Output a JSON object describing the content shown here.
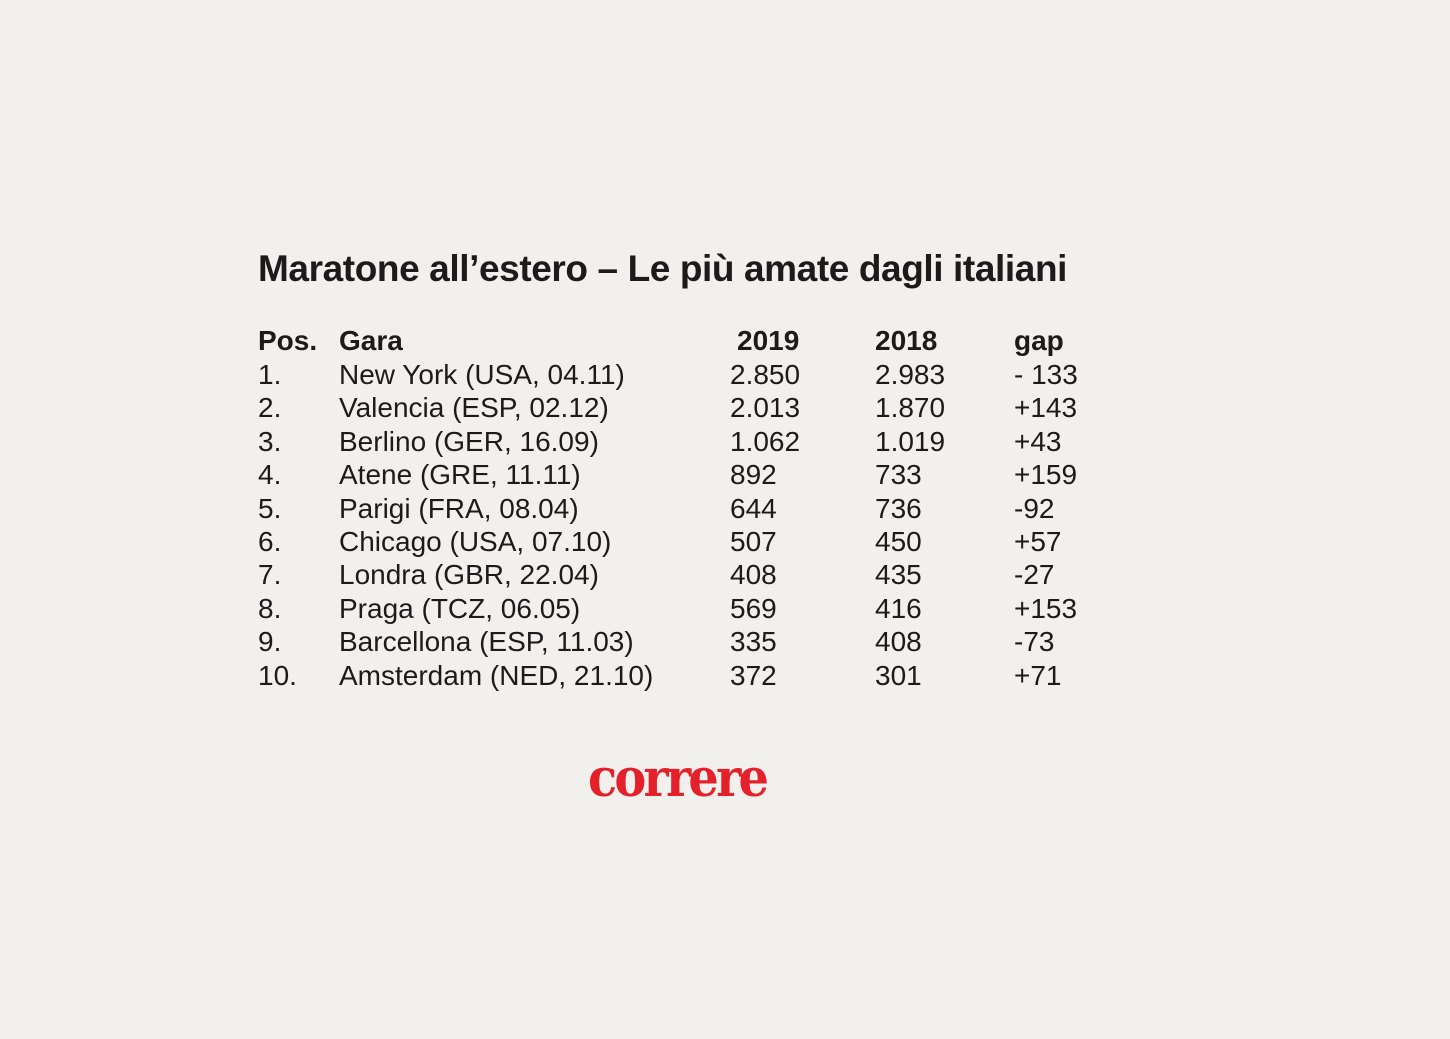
{
  "title": "Maratone all’estero – Le più amate dagli italiani",
  "table": {
    "headers": {
      "pos": "Pos.",
      "gara": "Gara",
      "y2019": "2019",
      "y2018": "2018",
      "gap": "gap"
    },
    "rows": [
      {
        "pos": "1.",
        "gara": "New York (USA, 04.11)",
        "y2019": "2.850",
        "y2018": "2.983",
        "gap": "- 133"
      },
      {
        "pos": "2.",
        "gara": "Valencia (ESP, 02.12)",
        "y2019": "2.013",
        "y2018": "1.870",
        "gap": "+143"
      },
      {
        "pos": "3.",
        "gara": "Berlino (GER, 16.09)",
        "y2019": "1.062",
        "y2018": "1.019",
        "gap": "+43"
      },
      {
        "pos": "4.",
        "gara": "Atene (GRE, 11.11)",
        "y2019": "892",
        "y2018": "733",
        "gap": "+159"
      },
      {
        "pos": "5.",
        "gara": "Parigi (FRA, 08.04)",
        "y2019": "644",
        "y2018": "736",
        "gap": "-92"
      },
      {
        "pos": "6.",
        "gara": "Chicago (USA, 07.10)",
        "y2019": "507",
        "y2018": "450",
        "gap": "+57"
      },
      {
        "pos": "7.",
        "gara": "Londra (GBR, 22.04)",
        "y2019": "408",
        "y2018": "435",
        "gap": "-27"
      },
      {
        "pos": "8.",
        "gara": "Praga (TCZ, 06.05)",
        "y2019": "569",
        "y2018": "416",
        "gap": "+153"
      },
      {
        "pos": "9.",
        "gara": "Barcellona (ESP, 11.03)",
        "y2019": "335",
        "y2018": "408",
        "gap": "-73"
      },
      {
        "pos": "10.",
        "gara": "Amsterdam (NED, 21.10)",
        "y2019": "372",
        "y2018": "301",
        "gap": "+71"
      }
    ]
  },
  "logo": {
    "text": "correre",
    "color": "#e4202a"
  },
  "colors": {
    "background": "#f1f0ec",
    "text": "#1d1a1b"
  }
}
